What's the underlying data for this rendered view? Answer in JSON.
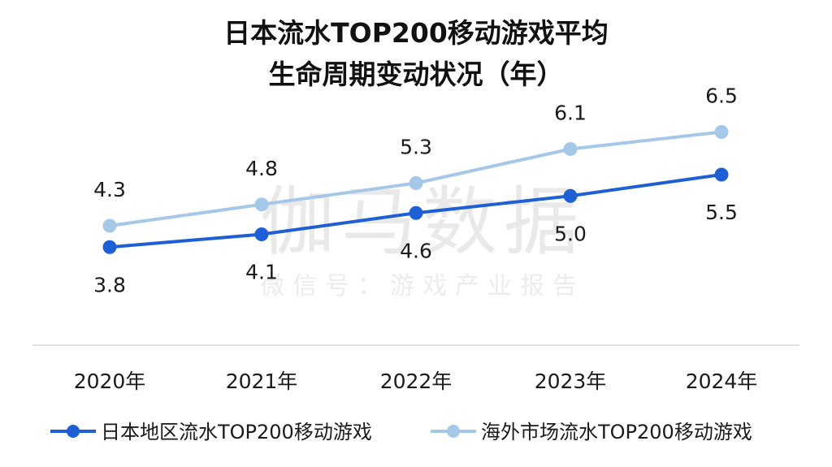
{
  "watermark": {
    "main": "伽马数据",
    "sub": "微信号：游戏产业报告"
  },
  "chart_data": {
    "type": "line",
    "title_lines": [
      "日本流水TOP200移动游戏平均",
      "生命周期变动状况（年）"
    ],
    "categories": [
      "2020年",
      "2021年",
      "2022年",
      "2023年",
      "2024年"
    ],
    "series": [
      {
        "name": "日本地区流水TOP200移动游戏",
        "values": [
          3.8,
          4.1,
          4.6,
          5.0,
          5.5
        ],
        "color": "#1f5fd6",
        "label_position": "below"
      },
      {
        "name": "海外市场流水TOP200移动游戏",
        "values": [
          4.3,
          4.8,
          5.3,
          6.1,
          6.5
        ],
        "color": "#a6c8e8",
        "label_position": "above"
      }
    ],
    "ylim": [
      1.5,
      7.5
    ],
    "grid": false,
    "legend_position": "bottom"
  }
}
